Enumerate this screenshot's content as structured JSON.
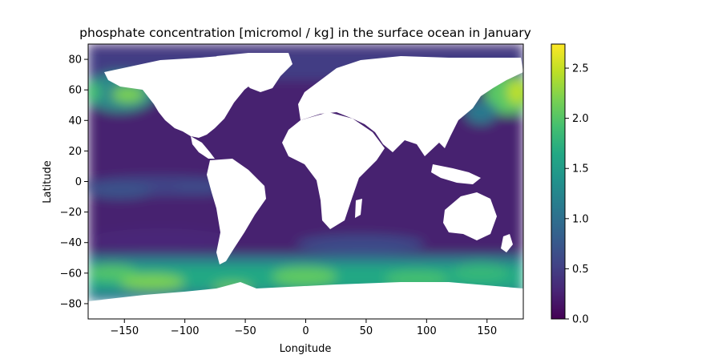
{
  "chart_data": {
    "type": "heatmap",
    "title": "phosphate concentration [micromol / kg] in the surface ocean in January",
    "xlabel": "Longitude",
    "ylabel": "Latitude",
    "xlim": [
      -180,
      180
    ],
    "ylim": [
      -90,
      90
    ],
    "x_ticks": [
      -150,
      -100,
      -50,
      0,
      50,
      100,
      150
    ],
    "y_ticks": [
      80,
      60,
      40,
      20,
      0,
      -20,
      -40,
      -60,
      -80
    ],
    "x_tick_labels": [
      "−150",
      "−100",
      "−50",
      "0",
      "50",
      "100",
      "150"
    ],
    "y_tick_labels": [
      "80",
      "60",
      "40",
      "20",
      "0",
      "−20",
      "−40",
      "−60",
      "−80"
    ],
    "colormap": "viridis",
    "colorbar": {
      "range": [
        0.0,
        2.74
      ],
      "ticks": [
        0.0,
        0.5,
        1.0,
        1.5,
        2.0,
        2.5
      ],
      "tick_labels": [
        "0.0",
        "0.5",
        "1.0",
        "1.5",
        "2.0",
        "2.5"
      ]
    },
    "land_color": "#ffffff",
    "grid": false
  }
}
